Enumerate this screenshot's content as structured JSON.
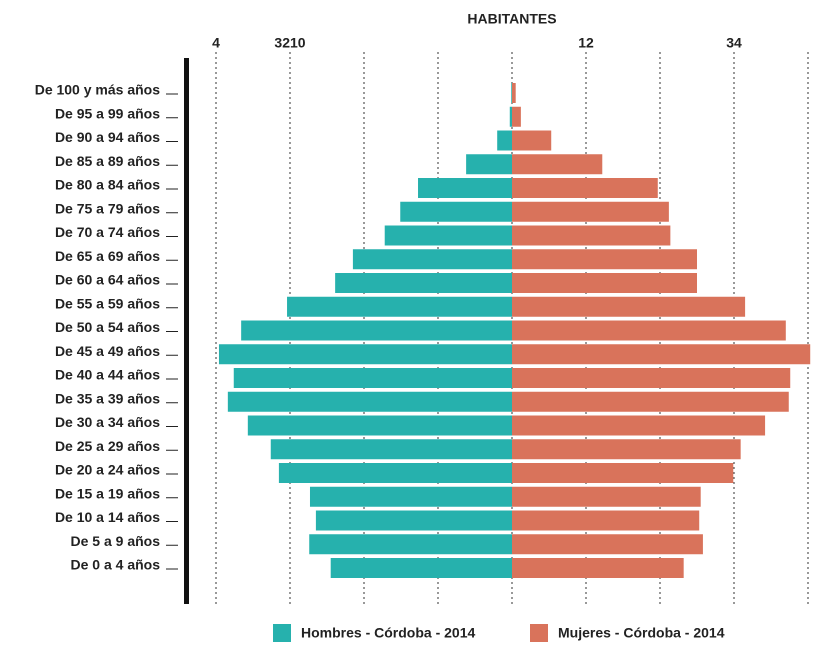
{
  "chart_data": {
    "type": "pyramid",
    "title": "HABITANTES",
    "categories": [
      "De 100 y más años",
      "De 95 a 99 años",
      "De 90 a 94 años",
      "De 85 a 89 años",
      "De 80 a 84 años",
      "De 75 a 79 años",
      "De 70 a 74 años",
      "De 65 a 69 años",
      "De 60 a 64 años",
      "De 55 a 59 años",
      "De 50 a 54 años",
      "De 45 a 49 años",
      "De 40 a 44 años",
      "De 35 a 39 años",
      "De 30 a 34 años",
      "De 25 a 29 años",
      "De 20 a 24 años",
      "De 15 a 19 años",
      "De 10 a 14 años",
      "De 5 a 9 años",
      "De 0 a 4 años"
    ],
    "series": [
      {
        "name": "Hombres - Córdoba - 2014",
        "color": "#26b1ad",
        "side": "left",
        "values": [
          0.01,
          0.03,
          0.2,
          0.62,
          1.27,
          1.51,
          1.72,
          2.15,
          2.39,
          3.04,
          3.66,
          3.96,
          3.76,
          3.84,
          3.57,
          3.26,
          3.15,
          2.73,
          2.65,
          2.74,
          2.45
        ]
      },
      {
        "name": "Mujeres - Córdoba - 2014",
        "color": "#d9735b",
        "side": "right",
        "values": [
          0.05,
          0.12,
          0.53,
          1.22,
          1.97,
          2.12,
          2.14,
          2.5,
          2.5,
          3.15,
          3.7,
          4.03,
          3.76,
          3.74,
          3.42,
          3.09,
          2.99,
          2.55,
          2.53,
          2.58,
          2.32
        ]
      }
    ],
    "xlim": [
      -4,
      4
    ],
    "xticks": [
      {
        "value": -4,
        "label": "4"
      },
      {
        "value": -3,
        "label": "3210"
      },
      {
        "value": 1,
        "label": "12"
      },
      {
        "value": 3,
        "label": "34"
      }
    ],
    "xgrid": [
      -4,
      -3,
      -2,
      -1,
      0,
      1,
      2,
      3,
      4
    ]
  }
}
